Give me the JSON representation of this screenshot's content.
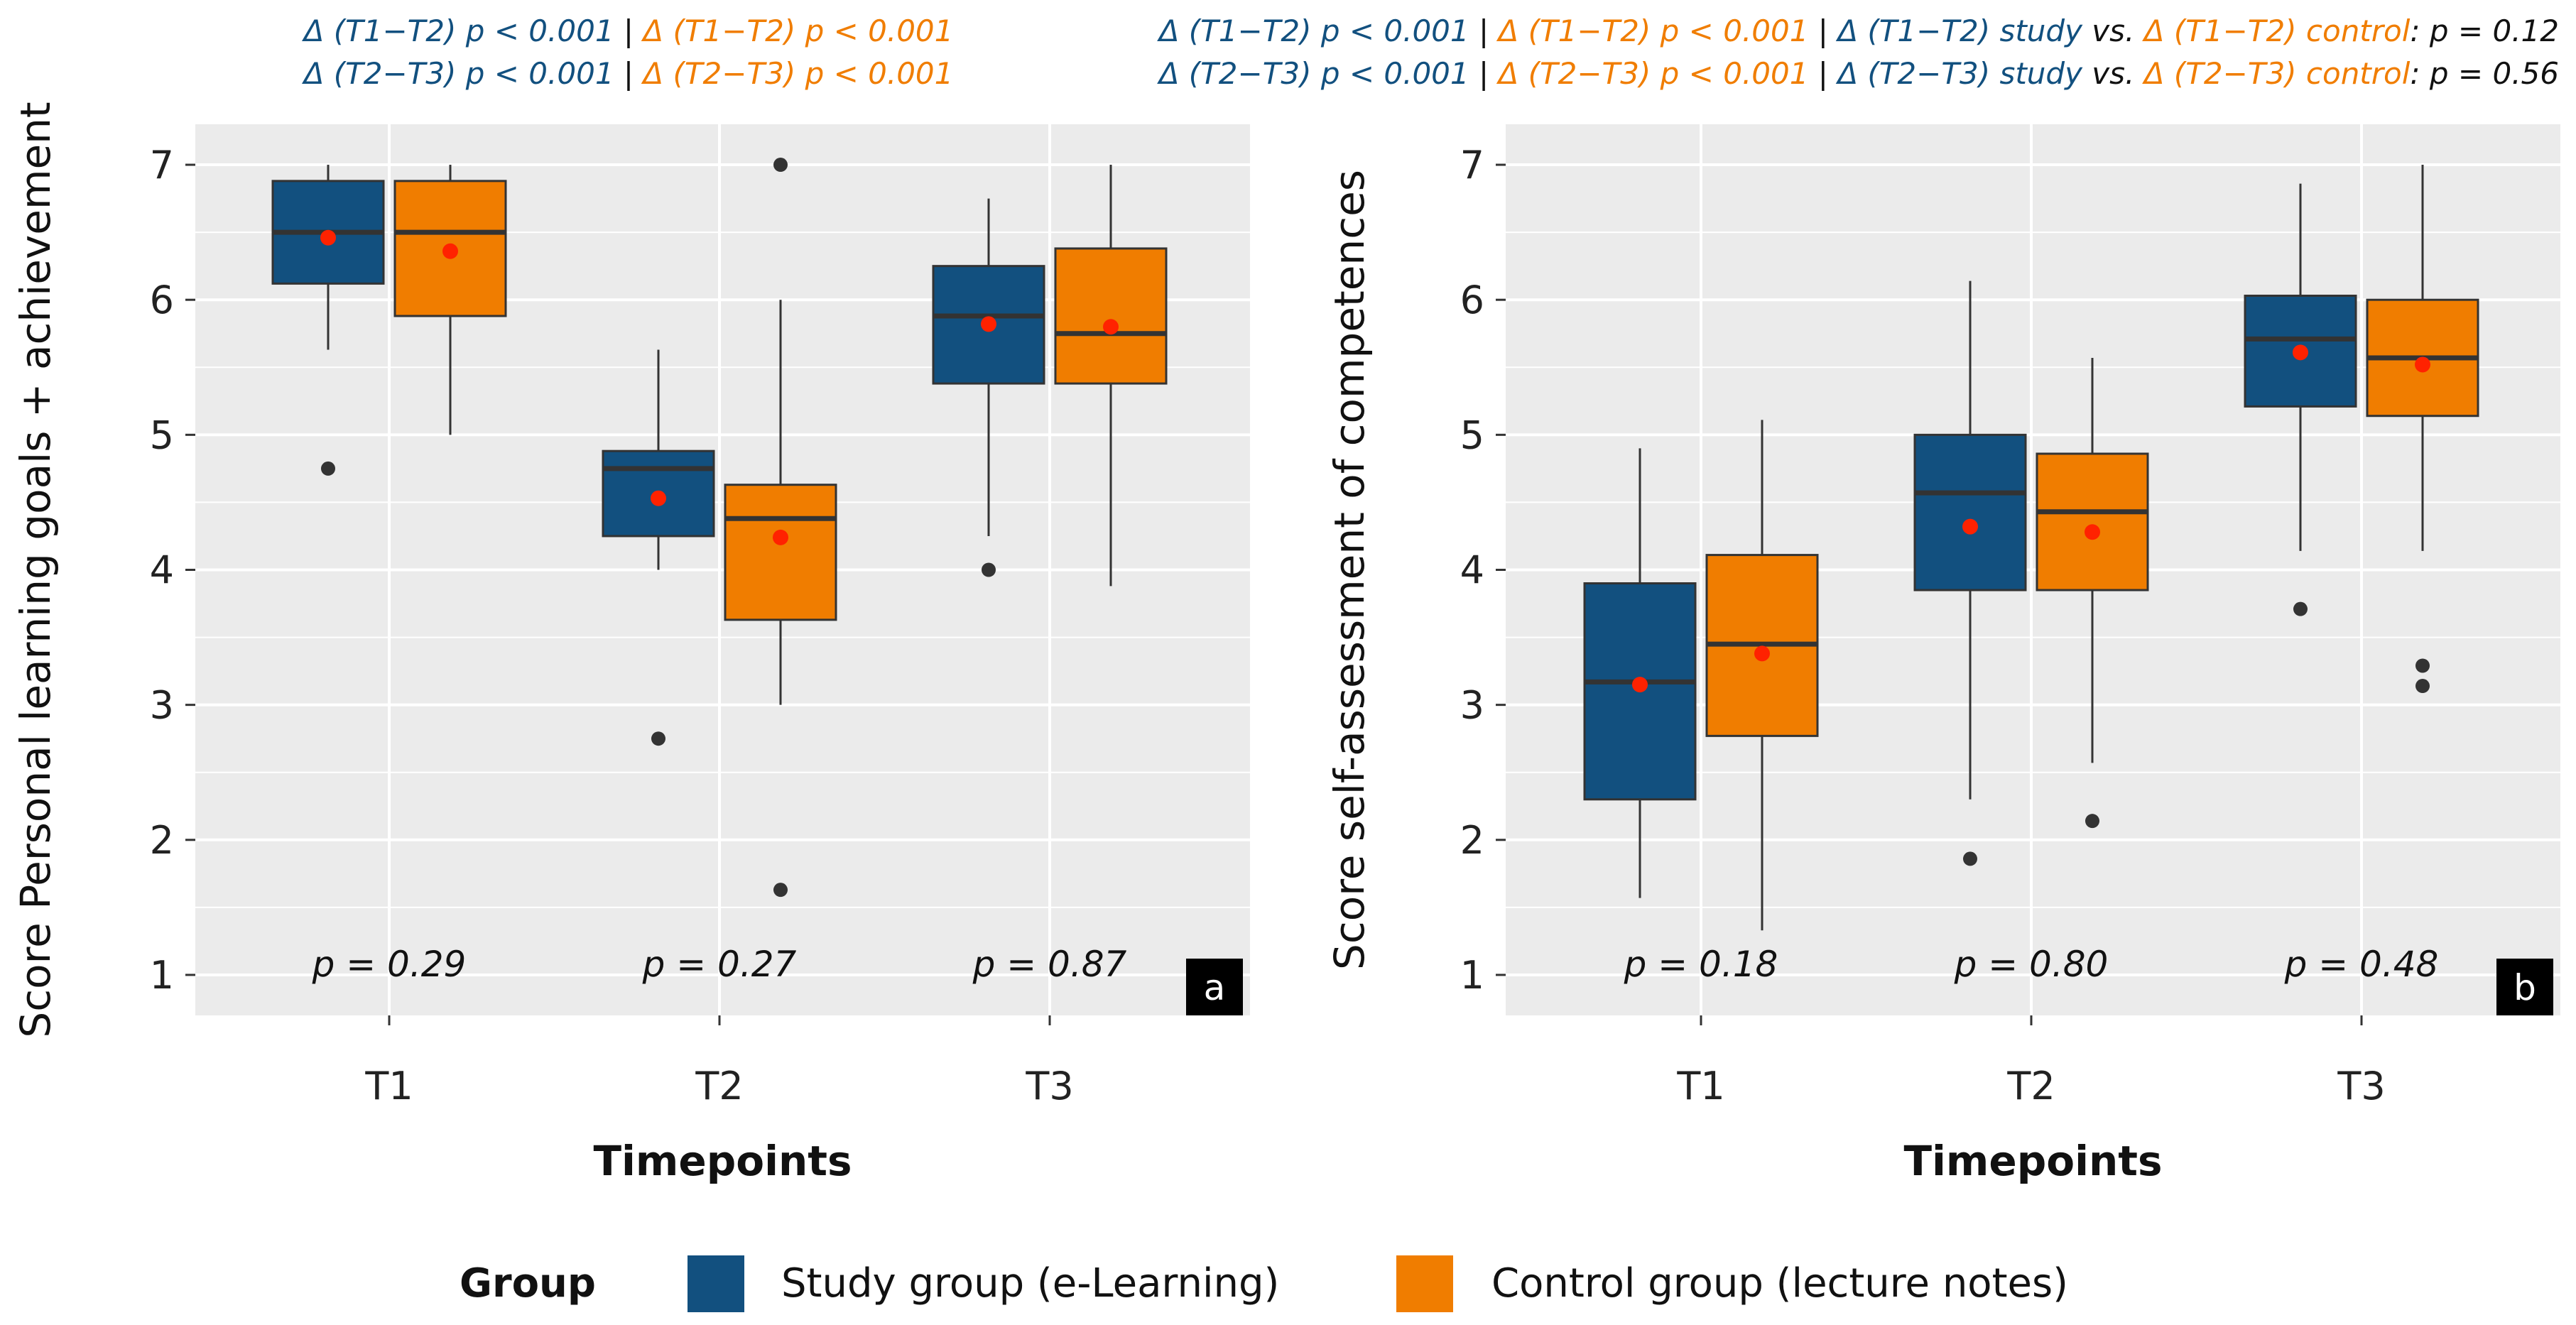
{
  "colors": {
    "study": "#12507f",
    "control": "#f07d00",
    "mean": "#ff2200",
    "panel_bg": "#ebebeb",
    "outlier": "#333333",
    "text": "#111111"
  },
  "legend": {
    "title": "Group",
    "items": [
      {
        "name": "Study group (e-Learning)",
        "key": "study"
      },
      {
        "name": "Control group (lecture notes)",
        "key": "control"
      }
    ]
  },
  "chart_data": [
    {
      "type": "boxplot",
      "panel_label": "a",
      "xlabel": "Timepoints",
      "ylabel": "Score Personal learning goals + achievement",
      "categories": [
        "T1",
        "T2",
        "T3"
      ],
      "ylim": [
        0.7,
        7.3
      ],
      "yticks": [
        1,
        2,
        3,
        4,
        5,
        6,
        7
      ],
      "grid": true,
      "header": [
        [
          {
            "text": "Δ (T1−T2) p < 0.001",
            "color": "study",
            "italic": true
          },
          {
            "text": " | ",
            "color": "text",
            "italic": false
          },
          {
            "text": "Δ (T1−T2) p < 0.001",
            "color": "control",
            "italic": true
          }
        ],
        [
          {
            "text": "Δ (T2−T3) p < 0.001",
            "color": "study",
            "italic": true
          },
          {
            "text": " | ",
            "color": "text",
            "italic": false
          },
          {
            "text": "Δ (T2−T3) p < 0.001",
            "color": "control",
            "italic": true
          }
        ]
      ],
      "pvalues": [
        "p = 0.29",
        "p = 0.27",
        "p = 0.87"
      ],
      "series": [
        {
          "name": "Study group (e-Learning)",
          "key": "study",
          "boxes": [
            {
              "lower": 5.63,
              "q1": 6.12,
              "median": 6.5,
              "q3": 6.88,
              "upper": 7.0,
              "mean": 6.46,
              "outliers": [
                4.75
              ]
            },
            {
              "lower": 4.0,
              "q1": 4.25,
              "median": 4.75,
              "q3": 4.88,
              "upper": 5.63,
              "mean": 4.53,
              "outliers": [
                2.75
              ]
            },
            {
              "lower": 4.25,
              "q1": 5.38,
              "median": 5.88,
              "q3": 6.25,
              "upper": 6.75,
              "mean": 5.82,
              "outliers": [
                4.0
              ]
            }
          ]
        },
        {
          "name": "Control group (lecture notes)",
          "key": "control",
          "boxes": [
            {
              "lower": 5.0,
              "q1": 5.88,
              "median": 6.5,
              "q3": 6.88,
              "upper": 7.0,
              "mean": 6.36,
              "outliers": []
            },
            {
              "lower": 3.0,
              "q1": 3.63,
              "median": 4.38,
              "q3": 4.63,
              "upper": 6.0,
              "mean": 4.24,
              "outliers": [
                7.0,
                1.63
              ]
            },
            {
              "lower": 3.88,
              "q1": 5.38,
              "median": 5.75,
              "q3": 6.38,
              "upper": 7.0,
              "mean": 5.8,
              "outliers": []
            }
          ]
        }
      ]
    },
    {
      "type": "boxplot",
      "panel_label": "b",
      "xlabel": "Timepoints",
      "ylabel": "Score self-assessment of competences",
      "categories": [
        "T1",
        "T2",
        "T3"
      ],
      "ylim": [
        0.7,
        7.3
      ],
      "yticks": [
        1,
        2,
        3,
        4,
        5,
        6,
        7
      ],
      "grid": true,
      "header": [
        [
          {
            "text": "Δ (T1−T2) p < 0.001",
            "color": "study",
            "italic": true
          },
          {
            "text": " | ",
            "color": "text",
            "italic": false
          },
          {
            "text": "Δ (T1−T2) p < 0.001",
            "color": "control",
            "italic": true
          },
          {
            "text": " | ",
            "color": "text",
            "italic": false
          },
          {
            "text": "Δ (T1−T2) study",
            "color": "study",
            "italic": true
          },
          {
            "text": " vs. ",
            "color": "text",
            "italic": true
          },
          {
            "text": "Δ (T1−T2) control",
            "color": "control",
            "italic": true
          },
          {
            "text": ": p = 0.12",
            "color": "text",
            "italic": true
          }
        ],
        [
          {
            "text": "Δ (T2−T3) p < 0.001",
            "color": "study",
            "italic": true
          },
          {
            "text": " | ",
            "color": "text",
            "italic": false
          },
          {
            "text": "Δ (T2−T3) p < 0.001",
            "color": "control",
            "italic": true
          },
          {
            "text": " | ",
            "color": "text",
            "italic": false
          },
          {
            "text": "Δ (T2−T3) study",
            "color": "study",
            "italic": true
          },
          {
            "text": " vs. ",
            "color": "text",
            "italic": true
          },
          {
            "text": "Δ (T2−T3) control",
            "color": "control",
            "italic": true
          },
          {
            "text": ": p = 0.56",
            "color": "text",
            "italic": true
          }
        ]
      ],
      "pvalues": [
        "p = 0.18",
        "p = 0.80",
        "p = 0.48"
      ],
      "series": [
        {
          "name": "Study group (e-Learning)",
          "key": "study",
          "boxes": [
            {
              "lower": 1.57,
              "q1": 2.3,
              "median": 3.17,
              "q3": 3.9,
              "upper": 4.9,
              "mean": 3.15,
              "outliers": []
            },
            {
              "lower": 2.3,
              "q1": 3.85,
              "median": 4.57,
              "q3": 5.0,
              "upper": 6.14,
              "mean": 4.32,
              "outliers": [
                1.86
              ]
            },
            {
              "lower": 4.14,
              "q1": 5.21,
              "median": 5.71,
              "q3": 6.03,
              "upper": 6.86,
              "mean": 5.61,
              "outliers": [
                3.71
              ]
            }
          ]
        },
        {
          "name": "Control group (lecture notes)",
          "key": "control",
          "boxes": [
            {
              "lower": 1.33,
              "q1": 2.77,
              "median": 3.45,
              "q3": 4.11,
              "upper": 5.11,
              "mean": 3.38,
              "outliers": []
            },
            {
              "lower": 2.57,
              "q1": 3.85,
              "median": 4.43,
              "q3": 4.86,
              "upper": 5.57,
              "mean": 4.28,
              "outliers": [
                2.14
              ]
            },
            {
              "lower": 4.14,
              "q1": 5.14,
              "median": 5.57,
              "q3": 6.0,
              "upper": 7.0,
              "mean": 5.52,
              "outliers": [
                3.29,
                3.14
              ]
            }
          ]
        }
      ]
    }
  ]
}
